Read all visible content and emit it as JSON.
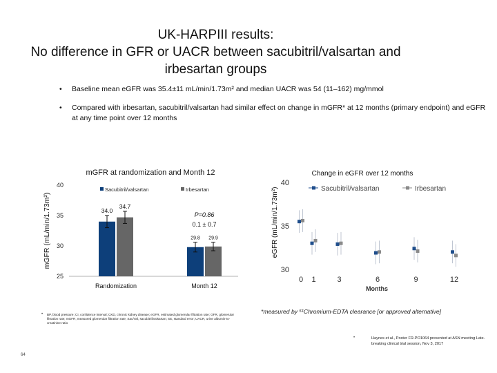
{
  "slide": {
    "title_lines": [
      "UK-HARPIII results:",
      "No difference in GFR or UACR between sacubitril/valsartan and",
      "irbesartan groups"
    ],
    "bullets": [
      "Baseline mean eGFR was 35.4±11 mL/min/1.73m² and median UACR was 54 (11–162) mg/mmol",
      "Compared with irbesartan, sacubitril/valsartan had similar effect on change in mGFR* at 12 months (primary endpoint) and eGFR at any time point over 12 months"
    ],
    "bullet_symbol": "•",
    "abbreviations": "BP, blood pressure; CI, confidence interval; CKD, chronic kidney disease; eGFR, estimated glomerular filtration rate; GFR, glomerular filtration rate; mGFR, measured glomerular filtration rate; Sac/Val, sacubitril/valsartan; SE, standard error; UACR, urine albumin-to-creatinine ratio",
    "measure_note": "*measured by ⁵¹Chromium-EDTA clearance [or approved alternative]",
    "reference": "Haynes et al., Poster FR-PO1064 presented at ASN meeting Late-breaking clinical trial session, Nov 3, 2017",
    "page_number": "64"
  },
  "chart_data": [
    {
      "type": "bar",
      "title": "mGFR at randomization and Month 12",
      "ylabel": "mGFR (mL/min/1.73m²)",
      "xlabel": "",
      "ylim": [
        25,
        40
      ],
      "yticks": [
        25,
        30,
        35,
        40
      ],
      "categories": [
        "Randomization",
        "Month 12"
      ],
      "legend_position": "top",
      "series": [
        {
          "name": "Sacubitril/valsartan",
          "color": "#0d3f7a",
          "values": [
            34.0,
            29.8
          ],
          "value_labels": [
            "34.0",
            "29.8"
          ],
          "error": [
            1.0,
            0.8
          ]
        },
        {
          "name": "Irbesartan",
          "color": "#666666",
          "values": [
            34.7,
            29.9
          ],
          "value_labels": [
            "34.7",
            "29.9"
          ],
          "error": [
            1.0,
            0.7
          ]
        }
      ],
      "annotations": [
        "P=0.86",
        "0.1 ± 0.7"
      ],
      "grid": false
    },
    {
      "type": "scatter",
      "title": "Change in eGFR over 12 months",
      "ylabel": "eGFR (mL/min/1.73m²)",
      "xlabel": "Months",
      "ylim": [
        30,
        40
      ],
      "yticks": [
        30,
        35,
        40
      ],
      "xticks": [
        0,
        1,
        3,
        6,
        9,
        12
      ],
      "legend_position": "top",
      "series": [
        {
          "name": "Sacubitril/valsartan",
          "color": "#1f4e8c",
          "x": [
            0,
            1,
            3,
            6,
            9,
            12
          ],
          "y": [
            35.5,
            33.0,
            32.9,
            31.9,
            32.4,
            32.0
          ],
          "ci": [
            1.3,
            1.3,
            1.3,
            1.3,
            1.3,
            1.3
          ]
        },
        {
          "name": "Irbesartan",
          "color": "#8a8a8a",
          "x": [
            0,
            1,
            3,
            6,
            9,
            12
          ],
          "y": [
            35.6,
            33.3,
            33.0,
            32.0,
            32.1,
            31.6
          ],
          "ci": [
            1.3,
            1.3,
            1.3,
            1.3,
            1.3,
            1.3
          ]
        }
      ],
      "grid": false
    }
  ]
}
